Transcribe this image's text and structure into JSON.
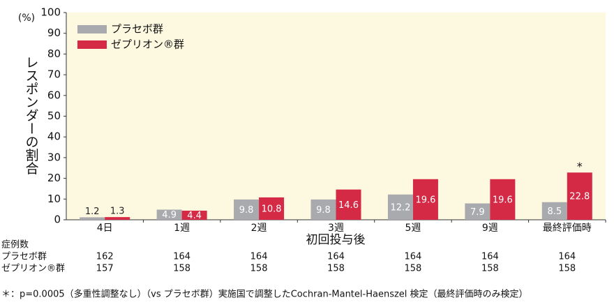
{
  "chart_data": {
    "type": "bar",
    "y_unit": "(%)",
    "y_title": "レスポンダーの割合",
    "x_title": "初回投与後",
    "categories": [
      "4日",
      "1週",
      "2週",
      "3週",
      "5週",
      "9週",
      "最終評価時"
    ],
    "series": [
      {
        "name": "プラセボ群",
        "color": "#a8aaad",
        "values": [
          1.2,
          4.9,
          9.8,
          9.8,
          12.2,
          7.9,
          8.5
        ]
      },
      {
        "name": "ゼプリオン®群",
        "color": "#d42a45",
        "values": [
          1.3,
          4.4,
          10.8,
          14.6,
          19.6,
          19.6,
          22.8
        ]
      }
    ],
    "ylim": [
      0,
      100
    ],
    "yticks": [
      0,
      10,
      20,
      30,
      40,
      50,
      60,
      70,
      80,
      90,
      100
    ],
    "legend": "upper left",
    "annotation": "*",
    "case_table": {
      "title": "症例数",
      "rows": [
        {
          "name": "プラセボ群",
          "values": [
            162,
            164,
            164,
            164,
            164,
            164,
            164
          ]
        },
        {
          "name": "ゼプリオン®群",
          "values": [
            157,
            158,
            158,
            158,
            158,
            158,
            158
          ]
        }
      ]
    },
    "footnote": "＊：p=0.0005（多重性調整なし）（vs プラセボ群）実施国で調整したCochran-Mantel-Haenszel 検定（最終評価時のみ検定）"
  }
}
